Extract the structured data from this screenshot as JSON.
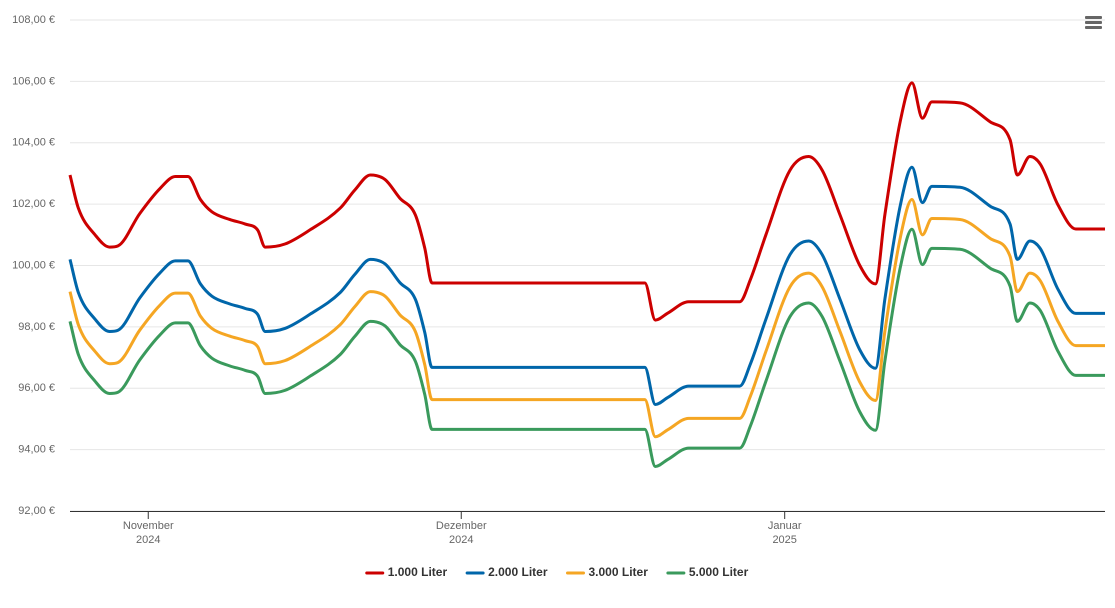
{
  "chart_data": {
    "type": "line",
    "x": [
      0,
      0.8,
      2.4,
      3.8,
      4.6,
      6.7,
      8.6,
      10.1,
      11.3,
      12.5,
      13.6,
      15.3,
      16.8,
      18.0,
      18.7,
      20.6,
      23.0,
      25.9,
      27.3,
      28.8,
      30.2,
      31.6,
      33.1,
      34.0,
      34.7,
      55.1,
      56.1,
      57.3,
      59.3,
      64.2,
      65.2,
      66.7,
      69.0,
      70.8,
      72.1,
      73.8,
      75.7,
      77.2,
      78.1,
      79.6,
      80.7,
      81.7,
      82.6,
      85.3,
      88.2,
      90.1,
      90.8,
      92.0,
      93.0,
      94.7,
      96.4,
      99.2
    ],
    "series": [
      {
        "name": "1.000 Liter",
        "color": "#cc0000",
        "values": [
          102.95,
          101.87,
          101.0,
          100.6,
          100.64,
          101.7,
          102.5,
          102.9,
          102.9,
          102.15,
          101.75,
          101.5,
          101.35,
          101.15,
          100.6,
          100.7,
          101.16,
          101.87,
          102.46,
          102.95,
          102.8,
          102.2,
          101.65,
          100.57,
          99.43,
          99.43,
          98.22,
          98.45,
          98.82,
          98.82,
          99.53,
          101.0,
          103.1,
          103.55,
          103.1,
          101.65,
          100.0,
          99.4,
          101.65,
          104.74,
          105.95,
          104.8,
          105.33,
          105.3,
          104.68,
          104.1,
          102.95,
          103.55,
          103.3,
          101.97,
          101.19,
          101.19
        ]
      },
      {
        "name": "2.000 Liter",
        "color": "#0066aa",
        "values": [
          100.2,
          99.12,
          98.25,
          97.85,
          97.89,
          98.95,
          99.75,
          100.15,
          100.15,
          99.4,
          99.0,
          98.75,
          98.6,
          98.4,
          97.85,
          97.95,
          98.41,
          99.12,
          99.71,
          100.2,
          100.05,
          99.45,
          98.9,
          97.82,
          96.68,
          96.68,
          95.47,
          95.7,
          96.07,
          96.07,
          96.78,
          98.25,
          100.35,
          100.8,
          100.35,
          98.9,
          97.25,
          96.65,
          98.9,
          101.99,
          103.2,
          102.05,
          102.58,
          102.55,
          101.93,
          101.35,
          100.2,
          100.8,
          100.55,
          99.22,
          98.44,
          98.44
        ]
      },
      {
        "name": "3.000 Liter",
        "color": "#f5a623",
        "values": [
          99.15,
          98.07,
          97.2,
          96.8,
          96.84,
          97.9,
          98.7,
          99.1,
          99.1,
          98.35,
          97.95,
          97.7,
          97.55,
          97.35,
          96.8,
          96.9,
          97.36,
          98.07,
          98.66,
          99.15,
          99.0,
          98.4,
          97.85,
          96.77,
          95.63,
          95.63,
          94.42,
          94.65,
          95.02,
          95.02,
          95.73,
          97.2,
          99.3,
          99.75,
          99.3,
          97.85,
          96.2,
          95.6,
          97.85,
          100.94,
          102.15,
          101.0,
          101.53,
          101.5,
          100.88,
          100.3,
          99.15,
          99.75,
          99.5,
          98.17,
          97.39,
          97.39
        ]
      },
      {
        "name": "5.000 Liter",
        "color": "#3a9a5c",
        "values": [
          98.18,
          97.1,
          96.23,
          95.83,
          95.87,
          96.93,
          97.73,
          98.13,
          98.13,
          97.38,
          96.98,
          96.73,
          96.58,
          96.38,
          95.83,
          95.93,
          96.39,
          97.1,
          97.69,
          98.18,
          98.03,
          97.43,
          96.88,
          95.8,
          94.66,
          94.66,
          93.45,
          93.68,
          94.05,
          94.05,
          94.76,
          96.23,
          98.33,
          98.78,
          98.33,
          96.88,
          95.23,
          94.63,
          96.88,
          99.97,
          101.18,
          100.03,
          100.56,
          100.53,
          99.91,
          99.33,
          98.18,
          98.78,
          98.53,
          97.2,
          96.42,
          96.42
        ]
      }
    ],
    "xlim": [
      0,
      99.2
    ],
    "xticks": [
      {
        "value": 7.5,
        "label": "November\n2024"
      },
      {
        "value": 37.5,
        "label": "Dezember\n2024"
      },
      {
        "value": 68.5,
        "label": "Januar\n2025"
      }
    ],
    "ylim": [
      92,
      108
    ],
    "yticks": [
      {
        "value": 92,
        "label": "92,00 €"
      },
      {
        "value": 94,
        "label": "94,00 €"
      },
      {
        "value": 96,
        "label": "96,00 €"
      },
      {
        "value": 98,
        "label": "98,00 €"
      },
      {
        "value": 100,
        "label": "100,00 €"
      },
      {
        "value": 102,
        "label": "102,00 €"
      },
      {
        "value": 104,
        "label": "104,00 €"
      },
      {
        "value": 106,
        "label": "106,00 €"
      },
      {
        "value": 108,
        "label": "108,00 €"
      }
    ],
    "grid": true
  }
}
